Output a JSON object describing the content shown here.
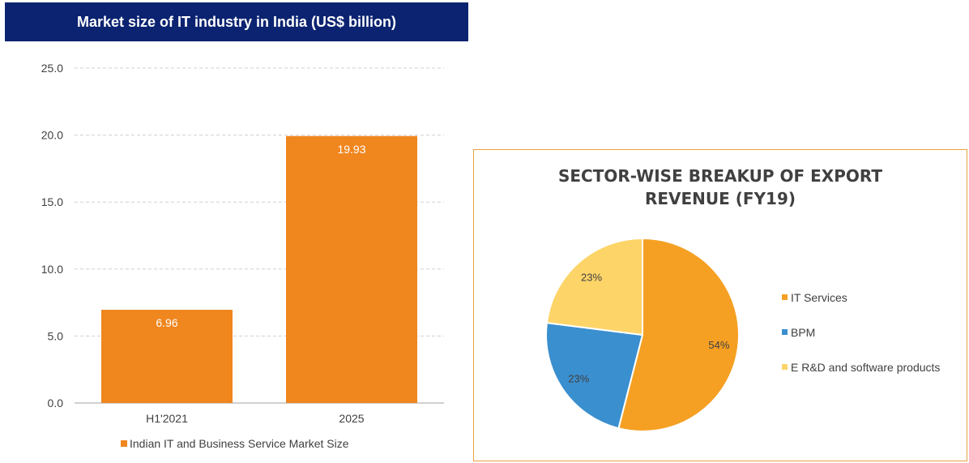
{
  "chart_data": [
    {
      "type": "bar",
      "title": "Market size of IT industry in India (US$ billion)",
      "categories": [
        "H1'2021",
        "2025"
      ],
      "series": [
        {
          "name": "Indian IT and Business Service Market Size",
          "values": [
            6.96,
            19.93
          ],
          "color": "#f0861e"
        }
      ],
      "data_labels": [
        "6.96",
        "19.93"
      ],
      "ylim": [
        0,
        25
      ],
      "yticks": [
        "0.0",
        "5.0",
        "10.0",
        "15.0",
        "20.0",
        "25.0"
      ],
      "grid": true,
      "legend_position": "bottom"
    },
    {
      "type": "pie",
      "title": "SECTOR-WISE BREAKUP OF EXPORT\nREVENUE (FY19)",
      "slices": [
        {
          "label": "IT Services",
          "value": 54,
          "display": "54%",
          "color": "#f5a023"
        },
        {
          "label": "BPM",
          "value": 23,
          "display": "23%",
          "color": "#3a8fcf"
        },
        {
          "label": "E R&D and software products",
          "value": 23,
          "display": "23%",
          "color": "#fdd468"
        }
      ],
      "legend_position": "right"
    }
  ]
}
